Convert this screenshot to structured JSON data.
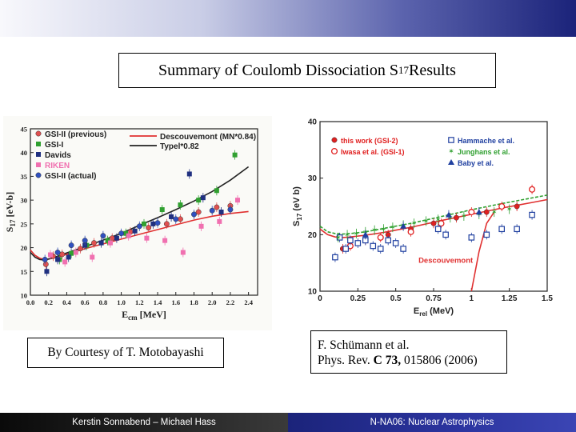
{
  "slide": {
    "title": "Summary of Coulomb Dissociation S",
    "title_sub": "17",
    "title_tail": " Results",
    "caption_left": "By Courtesy of T. Motobayashi",
    "caption_right_line1": "F. Schümann et al.",
    "caption_right_line2_prefix": "Phys. Rev. ",
    "caption_right_line2_bold": "C 73,",
    "caption_right_line2_suffix": " 015806 (2006)",
    "footer_left": "Kerstin Sonnabend – Michael Hass",
    "footer_right": "N-NA06: Nuclear Astrophysics",
    "colors": {
      "header_dark": "#1b237a",
      "footer_left": "#111111",
      "footer_right": "#1b237a"
    }
  },
  "chart_data": [
    {
      "type": "scatter",
      "xlabel": "E",
      "xlabel_sub": "cm",
      "xlabel_unit": " [MeV]",
      "ylabel": "S",
      "ylabel_sub": "17",
      "ylabel_unit": " [eV-b]",
      "xlim": [
        0.0,
        2.5
      ],
      "ylim": [
        10,
        45
      ],
      "x_ticks": [
        "0.0",
        "0.2",
        "0.4",
        "0.6",
        "0.8",
        "1.0",
        "1.2",
        "1.4",
        "1.6",
        "1.8",
        "2.0",
        "2.2",
        "2.4"
      ],
      "y_ticks": [
        "10",
        "15",
        "20",
        "25",
        "30",
        "35",
        "40",
        "45"
      ],
      "legend_position": "top",
      "legend_curves": [
        {
          "name": "Descouvemont (MN*0.84)",
          "color": "#e03030"
        },
        {
          "name": "Typel*0.82",
          "color": "#222222"
        }
      ],
      "series": [
        {
          "name": "GSI-II (previous)",
          "color": "#e05050",
          "marker": "circle",
          "x": [
            0.17,
            0.25,
            0.35,
            0.55,
            0.7,
            0.9,
            1.1,
            1.3,
            1.5,
            1.65,
            1.85,
            2.05,
            2.2
          ],
          "y": [
            16.5,
            18.2,
            18.6,
            19.8,
            21.0,
            22.0,
            23.3,
            24.2,
            25.0,
            26.0,
            27.5,
            28.5,
            28.8
          ]
        },
        {
          "name": "GSI-I",
          "color": "#30a030",
          "marker": "square",
          "x": [
            0.32,
            0.45,
            0.62,
            0.85,
            1.05,
            1.25,
            1.45,
            1.65,
            1.85,
            2.05,
            2.25
          ],
          "y": [
            17.5,
            18.8,
            20.5,
            21.5,
            23.0,
            25.0,
            28.0,
            29.0,
            30.0,
            32.0,
            39.5
          ]
        },
        {
          "name": "Davids",
          "color": "#203080",
          "marker": "square",
          "x": [
            0.18,
            0.3,
            0.42,
            0.6,
            0.78,
            0.95,
            1.15,
            1.35,
            1.55,
            1.75,
            1.9,
            2.1
          ],
          "y": [
            15.0,
            17.5,
            18.0,
            20.5,
            21.0,
            22.0,
            23.5,
            25.0,
            26.5,
            35.5,
            30.5,
            27.5
          ]
        },
        {
          "name": "RIKEN",
          "color": "#f070b0",
          "marker": "square",
          "x": [
            0.22,
            0.38,
            0.5,
            0.68,
            0.88,
            1.08,
            1.28,
            1.48,
            1.68,
            1.88,
            2.08,
            2.28
          ],
          "y": [
            18.5,
            17.0,
            19.0,
            18.0,
            21.0,
            22.5,
            22.0,
            21.5,
            19.0,
            24.5,
            25.5,
            30.0
          ]
        },
        {
          "name": "GSI-II (actual)",
          "color": "#3050c0",
          "marker": "circle",
          "x": [
            0.16,
            0.3,
            0.45,
            0.6,
            0.8,
            1.0,
            1.2,
            1.4,
            1.6,
            1.8,
            2.0,
            2.2
          ],
          "y": [
            17.5,
            19.0,
            20.5,
            21.5,
            22.5,
            23.0,
            24.5,
            25.2,
            26.0,
            27.0,
            27.8,
            28.0
          ]
        }
      ],
      "curves": [
        {
          "name": "Descouvemont (MN*0.84)",
          "color": "#e03030",
          "x": [
            0.0,
            0.05,
            0.1,
            0.15,
            0.2,
            0.3,
            0.4,
            0.6,
            0.8,
            1.0,
            1.2,
            1.4,
            1.6,
            1.8,
            2.0,
            2.2,
            2.4
          ],
          "y": [
            19.5,
            18.4,
            17.8,
            17.5,
            17.6,
            18.0,
            18.6,
            19.8,
            20.8,
            21.8,
            22.8,
            23.8,
            24.8,
            25.8,
            26.6,
            27.2,
            27.6
          ]
        },
        {
          "name": "Typel*0.82",
          "color": "#222222",
          "x": [
            0.0,
            0.05,
            0.1,
            0.15,
            0.2,
            0.3,
            0.4,
            0.6,
            0.8,
            1.0,
            1.2,
            1.4,
            1.6,
            1.8,
            2.0,
            2.2,
            2.4
          ],
          "y": [
            19.0,
            18.0,
            17.5,
            17.4,
            17.6,
            18.2,
            18.9,
            20.2,
            21.6,
            23.0,
            24.7,
            26.3,
            28.0,
            29.8,
            31.8,
            34.2,
            37.0
          ]
        }
      ]
    },
    {
      "type": "scatter",
      "xlabel": "E",
      "xlabel_sub": "rel",
      "xlabel_unit": " (MeV)",
      "ylabel": "S",
      "ylabel_sub": "17",
      "ylabel_unit": " (eV b)",
      "xlim": [
        0,
        1.5
      ],
      "ylim": [
        10,
        40
      ],
      "x_ticks": [
        "0",
        "0.25",
        "0.5",
        "0.75",
        "1",
        "1.25",
        "1.5"
      ],
      "y_ticks": [
        "10",
        "20",
        "30",
        "40"
      ],
      "legend_position": "top",
      "annotation": "Descouvemont",
      "series": [
        {
          "name": "this work (GSI-2)",
          "color": "#e02020",
          "marker": "filled-circle",
          "x": [
            0.15,
            0.3,
            0.45,
            0.6,
            0.75,
            0.9,
            1.1,
            1.3
          ],
          "y": [
            17.5,
            19.0,
            20.0,
            21.0,
            22.0,
            23.0,
            24.0,
            25.0
          ]
        },
        {
          "name": "Iwasa et al. (GSI-1)",
          "color": "#e02020",
          "marker": "open-circle",
          "x": [
            0.2,
            0.4,
            0.6,
            0.8,
            1.0,
            1.2,
            1.4
          ],
          "y": [
            18.0,
            19.5,
            20.5,
            22.0,
            24.0,
            25.0,
            28.0
          ]
        },
        {
          "name": "Hammache et al.",
          "color": "#2040a0",
          "marker": "open-square",
          "x": [
            0.1,
            0.13,
            0.17,
            0.2,
            0.25,
            0.3,
            0.35,
            0.4,
            0.45,
            0.5,
            0.55,
            0.78,
            0.83,
            1.0,
            1.1,
            1.2,
            1.3,
            1.4
          ],
          "y": [
            16.0,
            19.5,
            17.5,
            19.0,
            18.5,
            19.0,
            18.0,
            17.5,
            19.0,
            18.5,
            17.5,
            21.0,
            20.0,
            19.5,
            20.0,
            21.0,
            21.0,
            23.5
          ]
        },
        {
          "name": "Junghans et al.",
          "color": "#30a030",
          "marker": "star",
          "x": [
            0.12,
            0.18,
            0.24,
            0.3,
            0.36,
            0.42,
            0.48,
            0.55,
            0.62,
            0.7,
            0.78,
            0.86,
            0.95,
            1.05,
            1.15,
            1.25
          ],
          "y": [
            19.5,
            20.0,
            20.2,
            20.5,
            20.8,
            21.0,
            21.3,
            21.7,
            22.0,
            22.4,
            22.7,
            23.0,
            23.3,
            23.6,
            24.0,
            24.5
          ]
        },
        {
          "name": "Baby et al.",
          "color": "#2040a0",
          "marker": "triangle",
          "x": [
            0.3,
            0.55,
            0.85,
            1.05
          ],
          "y": [
            20.0,
            21.5,
            23.5,
            24.0
          ]
        }
      ],
      "curves": [
        {
          "name": "green-dashed",
          "color": "#30a030",
          "dash": true,
          "x": [
            0.0,
            0.05,
            0.1,
            0.15,
            0.2,
            0.3,
            0.4,
            0.5,
            0.6,
            0.8,
            1.0,
            1.2,
            1.4,
            1.5
          ],
          "y": [
            21.5,
            20.5,
            20.2,
            20.1,
            20.2,
            20.5,
            21.0,
            21.5,
            22.0,
            23.2,
            24.4,
            25.5,
            26.5,
            27.0
          ]
        },
        {
          "name": "red-solid",
          "color": "#e03030",
          "x": [
            0.0,
            0.05,
            0.1,
            0.15,
            0.2,
            0.3,
            0.4,
            0.5,
            0.6,
            0.8,
            1.0,
            1.2,
            1.4,
            1.5
          ],
          "y": [
            21.0,
            20.0,
            19.6,
            19.5,
            19.6,
            19.9,
            20.3,
            20.8,
            21.3,
            22.5,
            23.6,
            24.7,
            25.7,
            26.2
          ]
        },
        {
          "name": "Descouvemont",
          "color": "#e03030",
          "x": [
            1.0,
            1.05,
            1.1,
            1.15
          ],
          "y": [
            10.0,
            17.0,
            22.0,
            24.0
          ]
        }
      ]
    }
  ]
}
